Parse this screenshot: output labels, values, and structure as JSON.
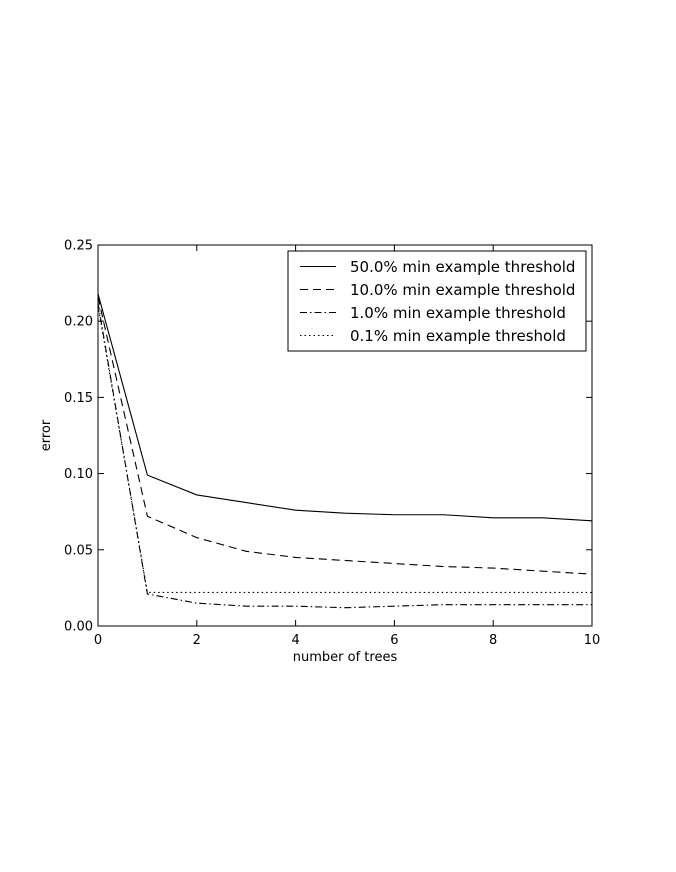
{
  "chart_data": {
    "type": "line",
    "xlabel": "number of trees",
    "ylabel": "error",
    "xlim": [
      0,
      10
    ],
    "ylim": [
      0,
      0.25
    ],
    "xticks": [
      0,
      2,
      4,
      6,
      8,
      10
    ],
    "xtick_labels": [
      "0",
      "2",
      "4",
      "6",
      "8",
      "10"
    ],
    "yticks": [
      0,
      0.05,
      0.1,
      0.15,
      0.2,
      0.25
    ],
    "ytick_labels": [
      "0.00",
      "0.05",
      "0.10",
      "0.15",
      "0.20",
      "0.25"
    ],
    "grid": false,
    "legend_position": "top-right",
    "x": [
      0,
      1,
      2,
      3,
      4,
      5,
      6,
      7,
      8,
      9,
      10
    ],
    "series": [
      {
        "name": "50.0% min example threshold",
        "line_style": "solid",
        "values": [
          0.218,
          0.099,
          0.086,
          0.081,
          0.076,
          0.074,
          0.073,
          0.073,
          0.071,
          0.071,
          0.069
        ]
      },
      {
        "name": "10.0% min example threshold",
        "line_style": "dashed",
        "values": [
          0.216,
          0.072,
          0.058,
          0.049,
          0.045,
          0.043,
          0.041,
          0.039,
          0.038,
          0.036,
          0.034
        ]
      },
      {
        "name": "1.0% min example threshold",
        "line_style": "dashdot",
        "values": [
          0.212,
          0.021,
          0.015,
          0.013,
          0.013,
          0.012,
          0.013,
          0.014,
          0.014,
          0.014,
          0.014
        ]
      },
      {
        "name": "0.1% min example threshold",
        "line_style": "dotted",
        "values": [
          0.21,
          0.022,
          0.022,
          0.022,
          0.022,
          0.022,
          0.022,
          0.022,
          0.022,
          0.022,
          0.022
        ]
      }
    ],
    "line_color": "#000000"
  }
}
